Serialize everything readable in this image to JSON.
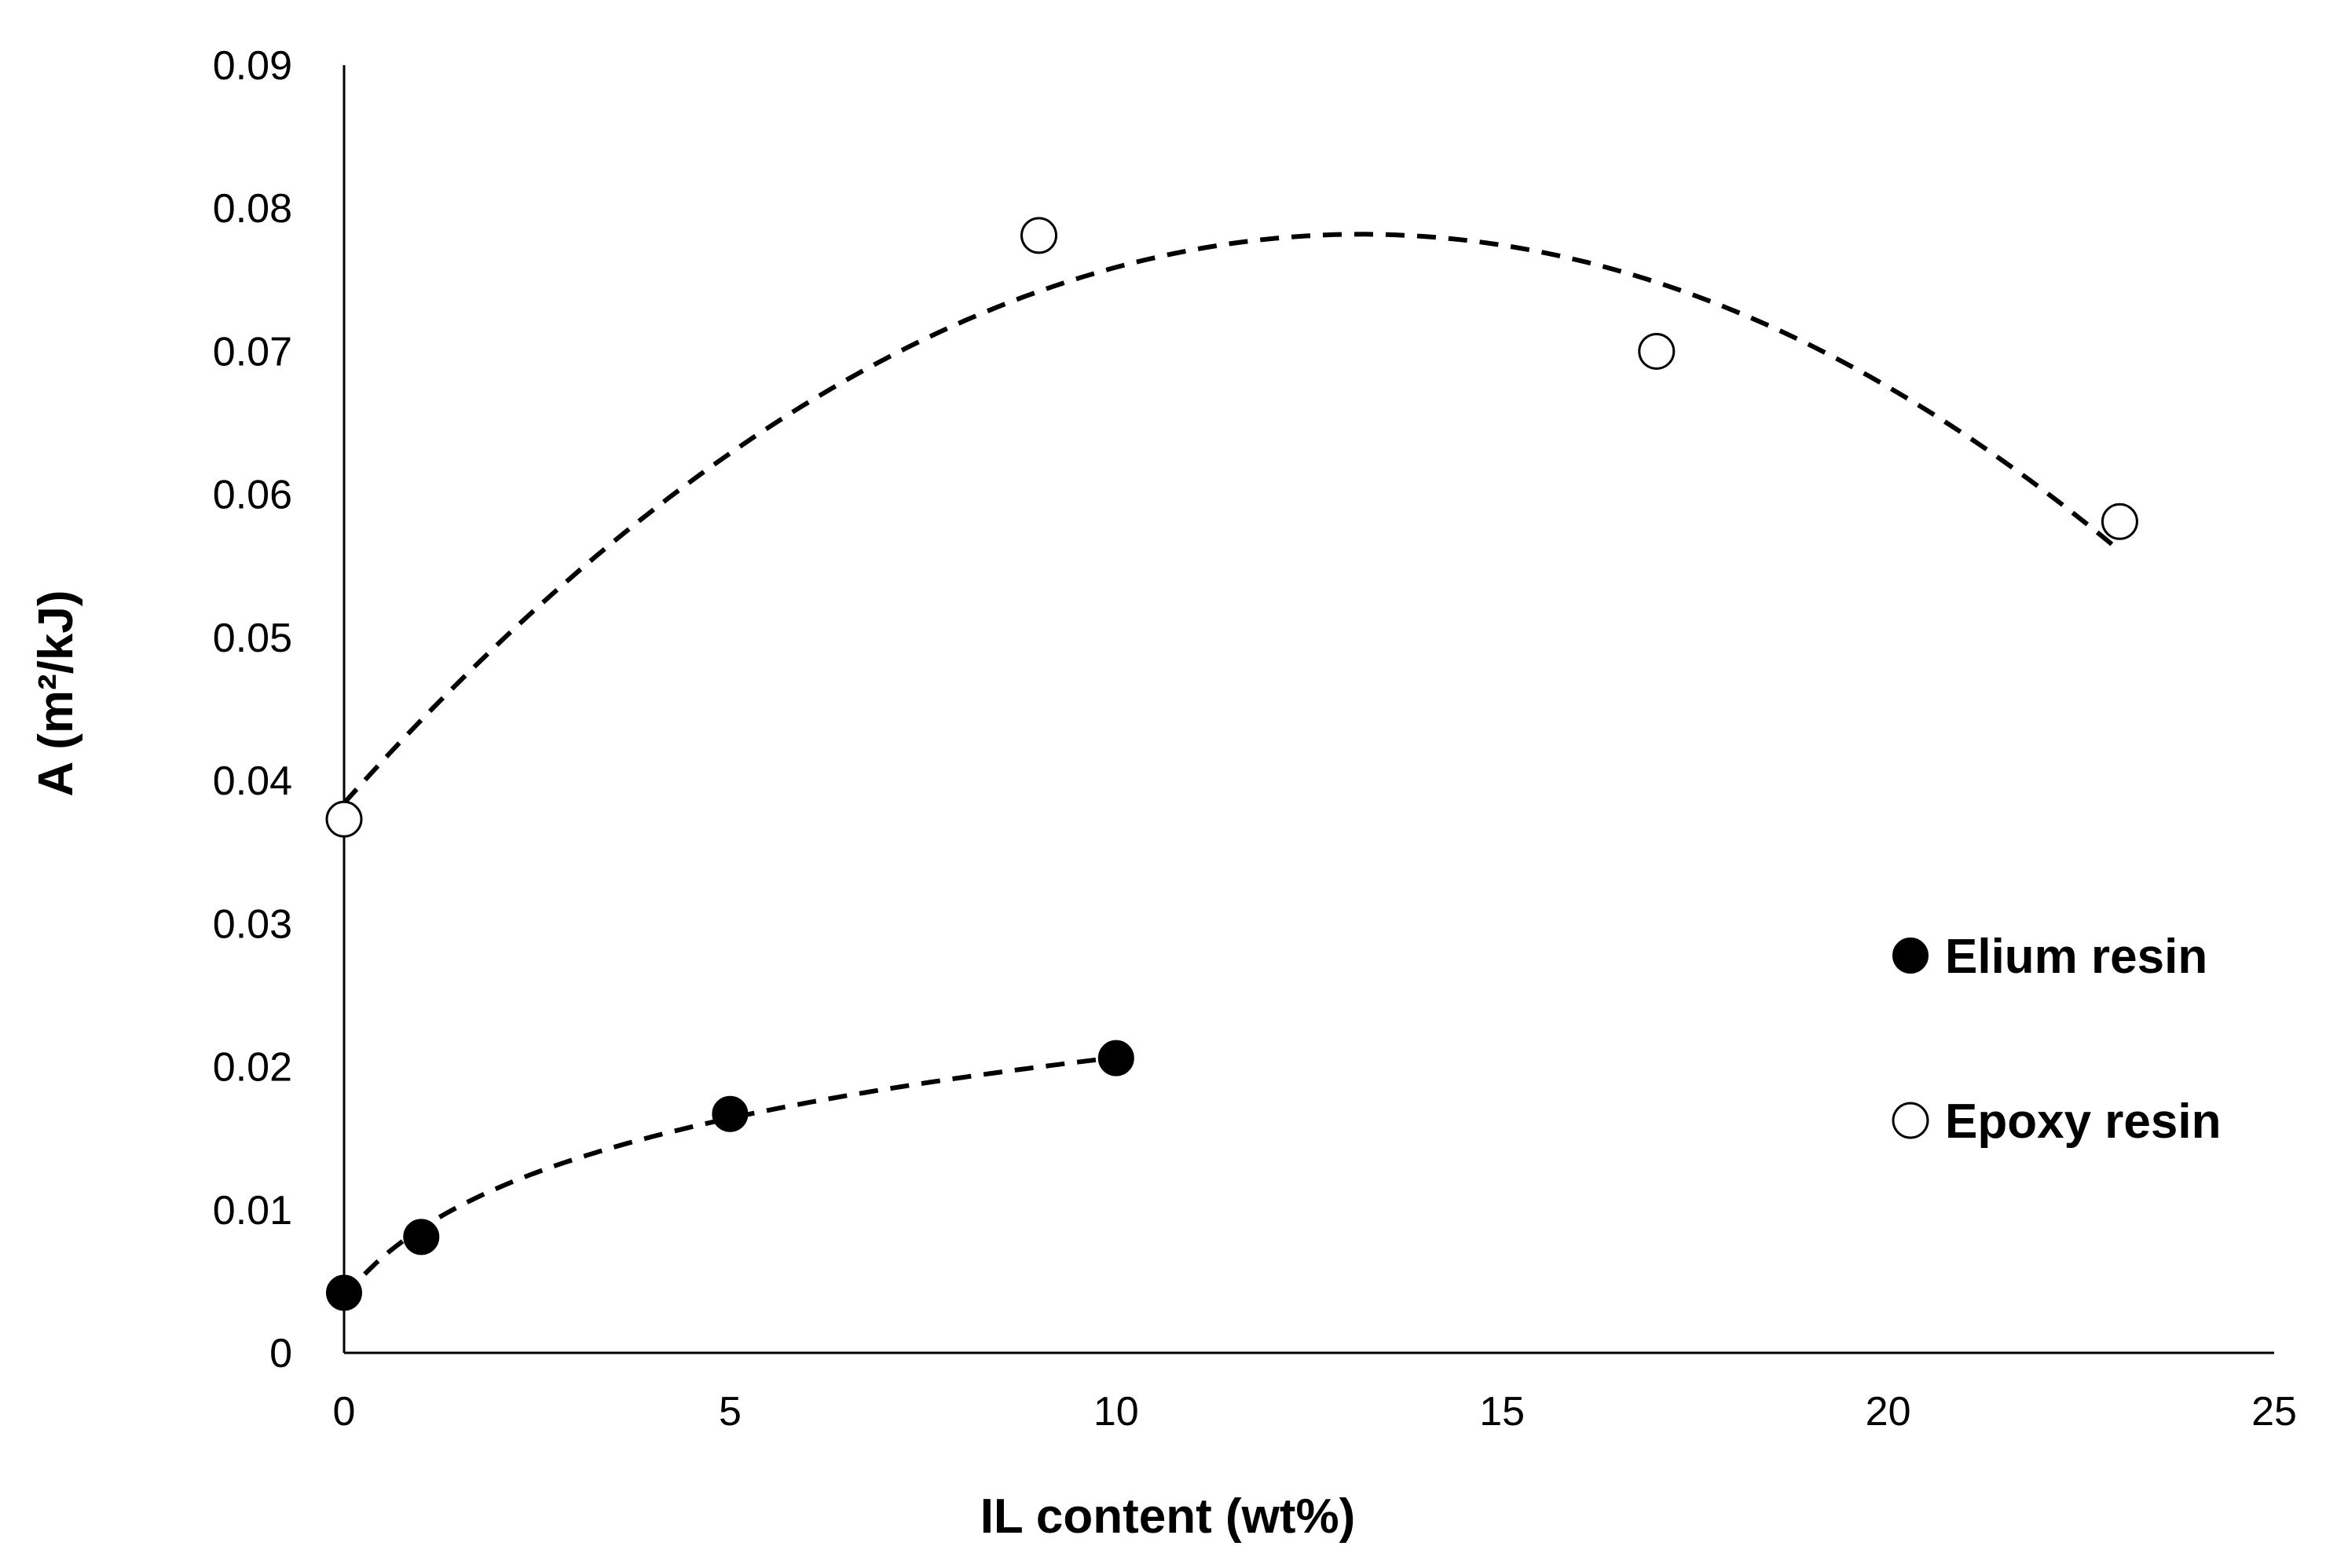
{
  "chart_data": {
    "type": "scatter",
    "title": "",
    "xlabel": "IL content (wt%)",
    "ylabel": "A (m²/kJ)",
    "xlim": [
      0,
      25
    ],
    "ylim": [
      0,
      0.09
    ],
    "x_ticks": [
      "0",
      "5",
      "10",
      "15",
      "20",
      "25"
    ],
    "y_ticks": [
      "0",
      "0.01",
      "0.02",
      "0.03",
      "0.04",
      "0.05",
      "0.06",
      "0.07",
      "0.08",
      "0.09"
    ],
    "grid": false,
    "legend_position": "right",
    "series": [
      {
        "name": "Elium resin",
        "marker": "filled-circle",
        "color": "#000000",
        "points": [
          {
            "x": 0,
            "y": 0.0042
          },
          {
            "x": 1,
            "y": 0.0081
          },
          {
            "x": 5,
            "y": 0.0167
          },
          {
            "x": 10,
            "y": 0.0206
          }
        ],
        "trendline": "dashed"
      },
      {
        "name": "Epoxy resin",
        "marker": "open-circle",
        "color": "#000000",
        "points": [
          {
            "x": 0,
            "y": 0.0373
          },
          {
            "x": 9,
            "y": 0.0781
          },
          {
            "x": 17,
            "y": 0.07
          },
          {
            "x": 23,
            "y": 0.0581
          }
        ],
        "trendline": "dashed"
      }
    ]
  }
}
